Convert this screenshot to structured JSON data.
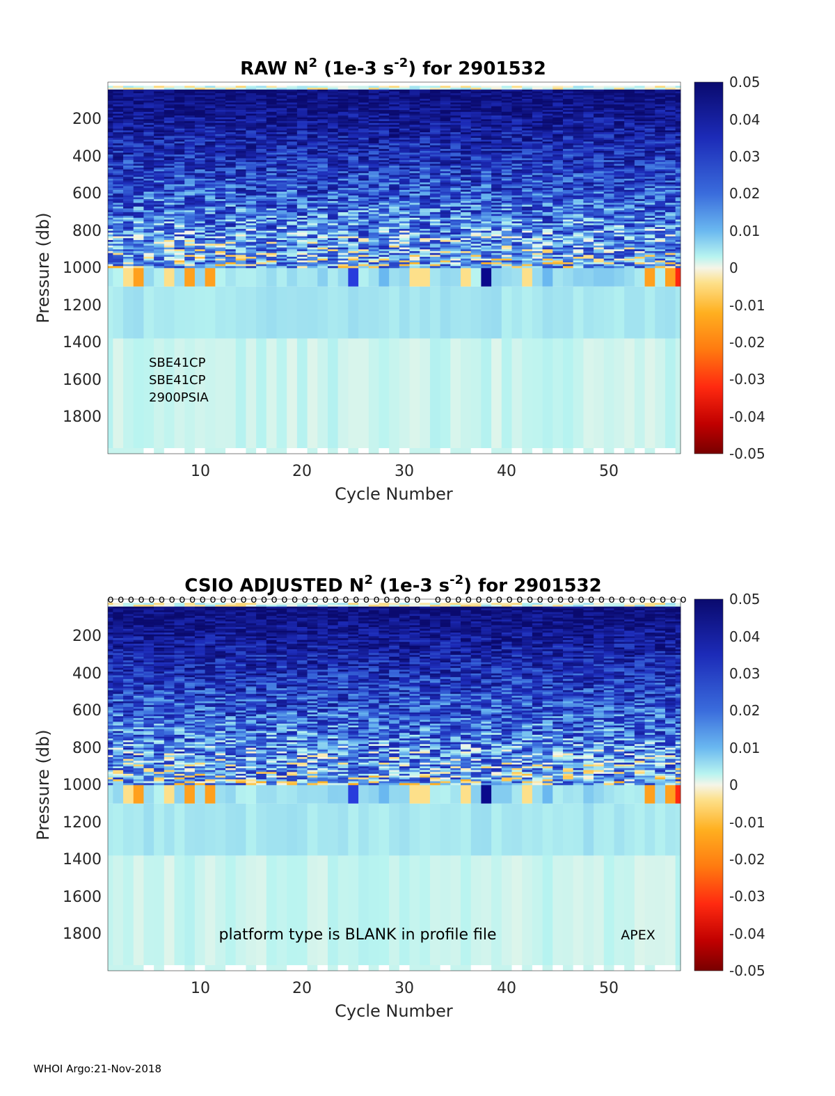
{
  "colorbar": {
    "ticks": [
      "0.05",
      "0.04",
      "0.03",
      "0.02",
      "0.01",
      "0",
      "-0.01",
      "-0.02",
      "-0.03",
      "-0.04",
      "-0.05"
    ]
  },
  "chart_data": [
    {
      "type": "heatmap",
      "title_prefix": "RAW N",
      "title_sup1": "2",
      "title_mid": " (1e-3 s",
      "title_sup2": "-2",
      "title_suffix": ") for 2901532",
      "xlabel": "Cycle Number",
      "ylabel": "Pressure (db)",
      "xticks": [
        "10",
        "20",
        "30",
        "40",
        "50"
      ],
      "yticks": [
        "200",
        "400",
        "600",
        "800",
        "1000",
        "1200",
        "1400",
        "1600",
        "1800"
      ],
      "xlim": [
        1,
        57
      ],
      "ylim": [
        0,
        2000
      ],
      "clim": [
        -0.05,
        0.05
      ],
      "annotations": [
        "SBE41CP",
        "SBE41CP",
        "2900PSIA"
      ],
      "note": "",
      "platform": ""
    },
    {
      "type": "heatmap",
      "title_prefix": "CSIO  ADJUSTED N",
      "title_sup1": "2",
      "title_mid": " (1e-3 s",
      "title_sup2": "-2",
      "title_suffix": ") for 2901532",
      "xlabel": "Cycle Number",
      "ylabel": "Pressure (db)",
      "xticks": [
        "10",
        "20",
        "30",
        "40",
        "50"
      ],
      "yticks": [
        "200",
        "400",
        "600",
        "800",
        "1000",
        "1200",
        "1400",
        "1600",
        "1800"
      ],
      "xlim": [
        1,
        57
      ],
      "ylim": [
        0,
        2000
      ],
      "clim": [
        -0.05,
        0.05
      ],
      "annotations": [],
      "note": "platform type is BLANK in profile file",
      "platform": "APEX",
      "qc_marker": "o"
    }
  ],
  "footer": {
    "text": "WHOI Argo:21-Nov-2018"
  }
}
